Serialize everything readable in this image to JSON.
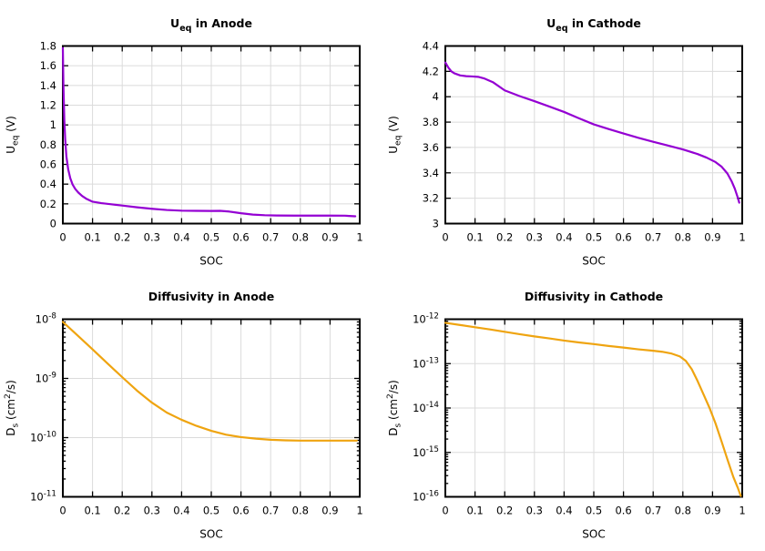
{
  "figure": {
    "background": "#ffffff",
    "rows": 2,
    "cols": 2
  },
  "style": {
    "purple_line": "#9400D3",
    "orange_line": "#EFA410",
    "grid_color": "#DBDBDB",
    "axis_color": "#000000",
    "text_color": "#000000"
  },
  "chart_data": [
    {
      "id": "ueq-anode",
      "type": "line",
      "title": "U_eq in Anode",
      "title_rich": [
        [
          "t",
          "U"
        ],
        [
          "sub",
          "eq"
        ],
        [
          "t",
          " in Anode"
        ]
      ],
      "xlabel": "SOC",
      "ylabel": "U_eq (V)",
      "ylabel_rich": [
        [
          "t",
          "U"
        ],
        [
          "sub",
          "eq"
        ],
        [
          "t",
          " (V)"
        ]
      ],
      "grid": true,
      "legend": "none",
      "color_key": "purple_line",
      "x_axis": {
        "range": [
          0,
          1
        ],
        "tick_values": [
          0,
          0.1,
          0.2,
          0.3,
          0.4,
          0.5,
          0.6,
          0.7,
          0.8,
          0.9,
          1
        ],
        "tick_labels": [
          "0",
          "0.1",
          "0.2",
          "0.3",
          "0.4",
          "0.5",
          "0.6",
          "0.7",
          "0.8",
          "0.9",
          "1"
        ]
      },
      "y_axis": {
        "scale": "linear",
        "range": [
          0,
          1.8
        ],
        "tick_values": [
          0,
          0.2,
          0.4,
          0.6,
          0.8,
          1,
          1.2,
          1.4,
          1.6,
          1.8
        ],
        "tick_labels": [
          "0",
          "0.2",
          "0.4",
          "0.6",
          "0.8",
          "1",
          "1.2",
          "1.4",
          "1.6",
          "1.8"
        ]
      },
      "x": [
        0,
        0.002,
        0.005,
        0.008,
        0.012,
        0.018,
        0.025,
        0.033,
        0.042,
        0.052,
        0.065,
        0.08,
        0.1,
        0.13,
        0.16,
        0.2,
        0.25,
        0.3,
        0.35,
        0.4,
        0.45,
        0.5,
        0.53,
        0.56,
        0.6,
        0.64,
        0.68,
        0.72,
        0.78,
        0.84,
        0.9,
        0.95,
        0.985
      ],
      "y": [
        1.78,
        1.4,
        1.05,
        0.85,
        0.68,
        0.55,
        0.46,
        0.395,
        0.35,
        0.315,
        0.28,
        0.25,
        0.222,
        0.207,
        0.197,
        0.183,
        0.165,
        0.15,
        0.138,
        0.131,
        0.129,
        0.128,
        0.129,
        0.122,
        0.105,
        0.091,
        0.085,
        0.082,
        0.081,
        0.081,
        0.081,
        0.08,
        0.074
      ]
    },
    {
      "id": "ueq-cathode",
      "type": "line",
      "title": "U_eq in Cathode",
      "title_rich": [
        [
          "t",
          "U"
        ],
        [
          "sub",
          "eq"
        ],
        [
          "t",
          " in Cathode"
        ]
      ],
      "xlabel": "SOC",
      "ylabel": "U_eq (V)",
      "ylabel_rich": [
        [
          "t",
          "U"
        ],
        [
          "sub",
          "eq"
        ],
        [
          "t",
          " (V)"
        ]
      ],
      "grid": true,
      "legend": "none",
      "color_key": "purple_line",
      "x_axis": {
        "range": [
          0,
          1
        ],
        "tick_values": [
          0,
          0.1,
          0.2,
          0.3,
          0.4,
          0.5,
          0.6,
          0.7,
          0.8,
          0.9,
          1
        ],
        "tick_labels": [
          "0",
          "0.1",
          "0.2",
          "0.3",
          "0.4",
          "0.5",
          "0.6",
          "0.7",
          "0.8",
          "0.9",
          "1"
        ]
      },
      "y_axis": {
        "scale": "linear",
        "range": [
          3,
          4.4
        ],
        "tick_values": [
          3,
          3.2,
          3.4,
          3.6,
          3.8,
          4,
          4.2,
          4.4
        ],
        "tick_labels": [
          "3",
          "3.2",
          "3.4",
          "3.6",
          "3.8",
          "4",
          "4.2",
          "4.4"
        ]
      },
      "x": [
        0,
        0.01,
        0.02,
        0.03,
        0.05,
        0.07,
        0.09,
        0.11,
        0.13,
        0.16,
        0.2,
        0.25,
        0.3,
        0.35,
        0.4,
        0.45,
        0.5,
        0.55,
        0.6,
        0.65,
        0.7,
        0.75,
        0.8,
        0.85,
        0.88,
        0.91,
        0.93,
        0.95,
        0.965,
        0.975,
        0.985,
        0.99
      ],
      "y": [
        4.27,
        4.23,
        4.2,
        4.185,
        4.168,
        4.162,
        4.16,
        4.157,
        4.145,
        4.115,
        4.05,
        4.005,
        3.965,
        3.923,
        3.88,
        3.83,
        3.782,
        3.745,
        3.71,
        3.676,
        3.645,
        3.615,
        3.585,
        3.548,
        3.52,
        3.485,
        3.45,
        3.395,
        3.33,
        3.275,
        3.205,
        3.165
      ]
    },
    {
      "id": "ds-anode",
      "type": "line",
      "title": "Diffusivity in Anode",
      "title_rich": [
        [
          "t",
          "Diffusivity in Anode"
        ]
      ],
      "xlabel": "SOC",
      "ylabel": "D_s (cm^2/s)",
      "ylabel_rich": [
        [
          "t",
          "D"
        ],
        [
          "sub",
          "s"
        ],
        [
          "t",
          " (cm"
        ],
        [
          "sup",
          "2"
        ],
        [
          "t",
          "/s)"
        ]
      ],
      "grid": true,
      "legend": "none",
      "color_key": "orange_line",
      "x_axis": {
        "range": [
          0,
          1
        ],
        "tick_values": [
          0,
          0.1,
          0.2,
          0.3,
          0.4,
          0.5,
          0.6,
          0.7,
          0.8,
          0.9,
          1
        ],
        "tick_labels": [
          "0",
          "0.1",
          "0.2",
          "0.3",
          "0.4",
          "0.5",
          "0.6",
          "0.7",
          "0.8",
          "0.9",
          "1"
        ]
      },
      "y_axis": {
        "scale": "log",
        "range_exponents": [
          -11,
          -8
        ],
        "tick_exponents": [
          -11,
          -10,
          -9,
          -8
        ],
        "tick_labels": [
          "10^-11",
          "10^-10",
          "10^-9",
          "10^-8"
        ]
      },
      "x": [
        0,
        0.05,
        0.1,
        0.15,
        0.2,
        0.25,
        0.3,
        0.35,
        0.4,
        0.45,
        0.5,
        0.55,
        0.6,
        0.65,
        0.7,
        0.75,
        0.8,
        0.85,
        0.9,
        0.95,
        0.99
      ],
      "y": [
        9e-09,
        5.3e-09,
        3.1e-09,
        1.8e-09,
        1.05e-09,
        6.2e-10,
        3.9e-10,
        2.65e-10,
        2e-10,
        1.58e-10,
        1.3e-10,
        1.12e-10,
        1.02e-10,
        9.6e-11,
        9.2e-11,
        9e-11,
        8.9e-11,
        8.9e-11,
        8.9e-11,
        8.9e-11,
        8.9e-11
      ]
    },
    {
      "id": "ds-cathode",
      "type": "line",
      "title": "Diffusivity in Cathode",
      "title_rich": [
        [
          "t",
          "Diffusivity in Cathode"
        ]
      ],
      "xlabel": "SOC",
      "ylabel": "D_s (cm^2/s)",
      "ylabel_rich": [
        [
          "t",
          "D"
        ],
        [
          "sub",
          "s"
        ],
        [
          "t",
          " (cm"
        ],
        [
          "sup",
          "2"
        ],
        [
          "t",
          "/s)"
        ]
      ],
      "grid": true,
      "legend": "none",
      "color_key": "orange_line",
      "x_axis": {
        "range": [
          0,
          1
        ],
        "tick_values": [
          0,
          0.1,
          0.2,
          0.3,
          0.4,
          0.5,
          0.6,
          0.7,
          0.8,
          0.9,
          1
        ],
        "tick_labels": [
          "0",
          "0.1",
          "0.2",
          "0.3",
          "0.4",
          "0.5",
          "0.6",
          "0.7",
          "0.8",
          "0.9",
          "1"
        ]
      },
      "y_axis": {
        "scale": "log",
        "range_exponents": [
          -16,
          -12
        ],
        "tick_exponents": [
          -16,
          -15,
          -14,
          -13,
          -12
        ],
        "tick_labels": [
          "10^-16",
          "10^-15",
          "10^-14",
          "10^-13",
          "10^-12"
        ]
      },
      "x": [
        0,
        0.05,
        0.1,
        0.15,
        0.2,
        0.25,
        0.3,
        0.35,
        0.4,
        0.45,
        0.5,
        0.55,
        0.6,
        0.65,
        0.7,
        0.73,
        0.76,
        0.79,
        0.81,
        0.83,
        0.85,
        0.87,
        0.89,
        0.91,
        0.93,
        0.95,
        0.97,
        0.985,
        0.995
      ],
      "y": [
        8.3e-13,
        7.4e-13,
        6.6e-13,
        5.9e-13,
        5.2e-13,
        4.6e-13,
        4.1e-13,
        3.7e-13,
        3.3e-13,
        3e-13,
        2.75e-13,
        2.5e-13,
        2.3e-13,
        2.1e-13,
        1.95e-13,
        1.85e-13,
        1.7e-13,
        1.45e-13,
        1.15e-13,
        7.5e-14,
        4e-14,
        2e-14,
        1e-14,
        4.5e-15,
        1.8e-15,
        7e-16,
        2.8e-16,
        1.6e-16,
        1.05e-16
      ]
    }
  ]
}
